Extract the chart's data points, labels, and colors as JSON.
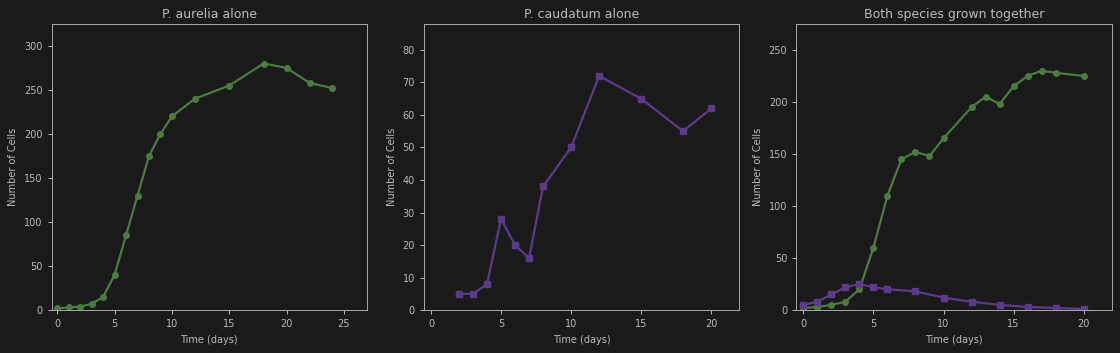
{
  "title_a": "P. aurelia alone",
  "title_b": "P. caudatum alone",
  "title_c": "Both species grown together",
  "xlabel": "Time (days)",
  "ylabel": "Number of Cells",
  "aurelia_color": "#4a7c3f",
  "caudatum_color": "#5c3a8a",
  "background_color": "#1a1a1a",
  "axes_face_color": "#1a1a1a",
  "text_color": "#bbbbbb",
  "spine_color": "#aaaaaa",
  "aurelia_alone_x": [
    0,
    1,
    2,
    3,
    4,
    5,
    6,
    7,
    8,
    9,
    10,
    12,
    15,
    18,
    20,
    22,
    24
  ],
  "aurelia_alone_y": [
    2,
    3,
    4,
    7,
    15,
    40,
    85,
    130,
    175,
    200,
    220,
    240,
    255,
    280,
    275,
    258,
    252
  ],
  "caudatum_alone_x": [
    2,
    3,
    4,
    5,
    6,
    7,
    8,
    10,
    12,
    15,
    18,
    20
  ],
  "caudatum_alone_y": [
    5,
    5,
    8,
    28,
    20,
    16,
    38,
    50,
    72,
    65,
    55,
    62
  ],
  "together_aurelia_x": [
    0,
    1,
    2,
    3,
    4,
    5,
    6,
    7,
    8,
    9,
    10,
    12,
    13,
    14,
    15,
    16,
    17,
    18,
    20
  ],
  "together_aurelia_y": [
    2,
    3,
    5,
    8,
    20,
    60,
    110,
    145,
    152,
    148,
    165,
    195,
    205,
    198,
    215,
    225,
    230,
    228,
    225
  ],
  "together_caudatum_x": [
    0,
    1,
    2,
    3,
    4,
    5,
    6,
    8,
    10,
    12,
    14,
    16,
    18,
    20
  ],
  "together_caudatum_y": [
    5,
    8,
    15,
    22,
    25,
    22,
    20,
    18,
    12,
    8,
    5,
    3,
    2,
    1
  ],
  "ylim_a": [
    0,
    325
  ],
  "yticks_a": [
    0,
    50,
    100,
    150,
    200,
    250,
    300
  ],
  "xlim_a": [
    -0.5,
    27
  ],
  "xticks_a": [
    0,
    5,
    10,
    15,
    20,
    25
  ],
  "ylim_b": [
    0,
    88
  ],
  "yticks_b": [
    0,
    10,
    20,
    30,
    40,
    50,
    60,
    70,
    80
  ],
  "xlim_b": [
    -0.5,
    22
  ],
  "xticks_b": [
    0,
    5,
    10,
    15,
    20
  ],
  "ylim_c": [
    0,
    275
  ],
  "yticks_c": [
    0,
    50,
    100,
    150,
    200,
    250
  ],
  "xlim_c": [
    -0.5,
    22
  ],
  "xticks_c": [
    0,
    5,
    10,
    15,
    20
  ],
  "marker_aurelia": "o",
  "marker_caudatum": "s",
  "markersize": 4,
  "linewidth": 1.6,
  "title_fontsize": 9,
  "label_fontsize": 7,
  "tick_fontsize": 7
}
